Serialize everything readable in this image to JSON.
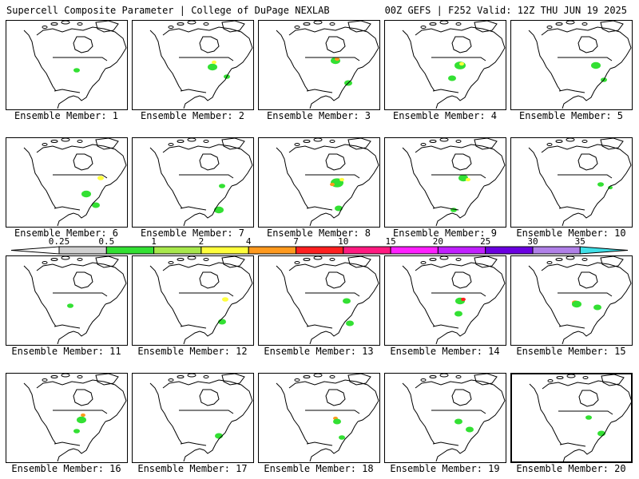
{
  "header": {
    "left": "Supercell Composite Parameter | College of DuPage NEXLAB",
    "right": "00Z GEFS | F252 Valid: 12Z THU JUN 19 2025"
  },
  "colorbar": {
    "labels": [
      "0.25",
      "0.5",
      "1",
      "2",
      "4",
      "7",
      "10",
      "15",
      "20",
      "25",
      "30",
      "35"
    ],
    "colors": [
      "#ffffff",
      "#d0d0d0",
      "#33e033",
      "#a8e84c",
      "#ffff3c",
      "#ff9a1e",
      "#ff2020",
      "#ff1a80",
      "#ff20ff",
      "#c020ff",
      "#6a00e0",
      "#b080e8",
      "#40e0e8"
    ]
  },
  "panels": [
    {
      "label": "Ensemble Member: 1",
      "blobs": []
    },
    {
      "label": "Ensemble Member: 2",
      "blobs": []
    },
    {
      "label": "Ensemble Member: 3",
      "blobs": []
    },
    {
      "label": "Ensemble Member: 4",
      "blobs": []
    },
    {
      "label": "Ensemble Member: 5",
      "blobs": []
    },
    {
      "label": "Ensemble Member: 6",
      "blobs": []
    },
    {
      "label": "Ensemble Member: 7",
      "blobs": []
    },
    {
      "label": "Ensemble Member: 8",
      "blobs": []
    },
    {
      "label": "Ensemble Member: 9",
      "blobs": []
    },
    {
      "label": "Ensemble Member: 10",
      "blobs": []
    },
    {
      "label": "Ensemble Member: 11",
      "blobs": []
    },
    {
      "label": "Ensemble Member: 12",
      "blobs": []
    },
    {
      "label": "Ensemble Member: 13",
      "blobs": []
    },
    {
      "label": "Ensemble Member: 14",
      "blobs": []
    },
    {
      "label": "Ensemble Member: 15",
      "blobs": []
    },
    {
      "label": "Ensemble Member: 16",
      "blobs": []
    },
    {
      "label": "Ensemble Member: 17",
      "blobs": []
    },
    {
      "label": "Ensemble Member: 18",
      "blobs": []
    },
    {
      "label": "Ensemble Member: 19",
      "blobs": []
    },
    {
      "label": "Ensemble Member: 20",
      "blobs": []
    }
  ]
}
